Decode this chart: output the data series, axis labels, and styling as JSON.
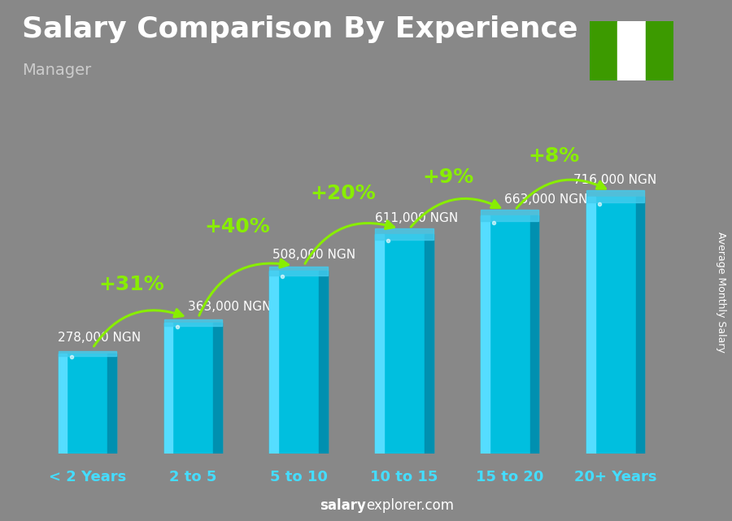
{
  "title": "Salary Comparison By Experience",
  "subtitle": "Manager",
  "categories": [
    "< 2 Years",
    "2 to 5",
    "5 to 10",
    "10 to 15",
    "15 to 20",
    "20+ Years"
  ],
  "values": [
    278000,
    363000,
    508000,
    611000,
    663000,
    716000
  ],
  "labels": [
    "278,000 NGN",
    "363,000 NGN",
    "508,000 NGN",
    "611,000 NGN",
    "663,000 NGN",
    "716,000 NGN"
  ],
  "pct_changes": [
    "+31%",
    "+40%",
    "+20%",
    "+9%",
    "+8%"
  ],
  "bar_face_color": "#00bfdf",
  "bar_left_color": "#55ddff",
  "bar_right_color": "#0090b0",
  "bar_top_color": "#44ccee",
  "bg_color": "#888888",
  "title_color": "#ffffff",
  "subtitle_color": "#cccccc",
  "label_color": "#ffffff",
  "cat_color": "#44ddff",
  "pct_color": "#88ee00",
  "ylabel": "Average Monthly Salary",
  "footer_bold": "salary",
  "footer_normal": "explorer.com",
  "ylim_max": 900000,
  "flag_green": "#3c9a00",
  "flag_white": "#ffffff",
  "title_fontsize": 26,
  "subtitle_fontsize": 14,
  "label_fontsize": 11,
  "cat_fontsize": 13,
  "pct_fontsize": 18
}
